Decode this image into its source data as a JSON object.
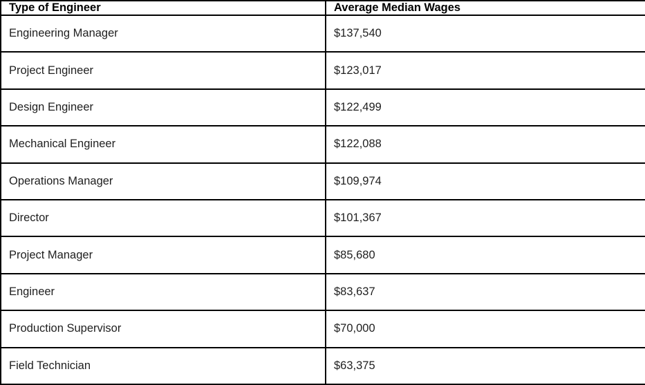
{
  "table": {
    "columns": [
      {
        "label": "Type of Engineer"
      },
      {
        "label": "Average Median Wages"
      }
    ],
    "rows": [
      {
        "type": "Engineering Manager",
        "wage": "$137,540"
      },
      {
        "type": "Project Engineer",
        "wage": "$123,017"
      },
      {
        "type": "Design Engineer",
        "wage": "$122,499"
      },
      {
        "type": "Mechanical Engineer",
        "wage": "$122,088"
      },
      {
        "type": "Operations Manager",
        "wage": "$109,974"
      },
      {
        "type": "Director",
        "wage": "$101,367"
      },
      {
        "type": "Project Manager",
        "wage": "$85,680"
      },
      {
        "type": "Engineer",
        "wage": "$83,637"
      },
      {
        "type": "Production Supervisor",
        "wage": "$70,000"
      },
      {
        "type": "Field Technician",
        "wage": "$63,375"
      }
    ]
  },
  "chart_data": {
    "type": "table",
    "title": "",
    "columns": [
      "Type of Engineer",
      "Average Median Wages"
    ],
    "categories": [
      "Engineering Manager",
      "Project Engineer",
      "Design Engineer",
      "Mechanical Engineer",
      "Operations Manager",
      "Director",
      "Project Manager",
      "Engineer",
      "Production Supervisor",
      "Field Technician"
    ],
    "values": [
      137540,
      123017,
      122499,
      122088,
      109974,
      101367,
      85680,
      83637,
      70000,
      63375
    ],
    "value_format": "USD"
  },
  "colors": {
    "border": "#000000",
    "background": "#ffffff",
    "header_text": "#000000",
    "cell_text": "#1f1f1f"
  }
}
